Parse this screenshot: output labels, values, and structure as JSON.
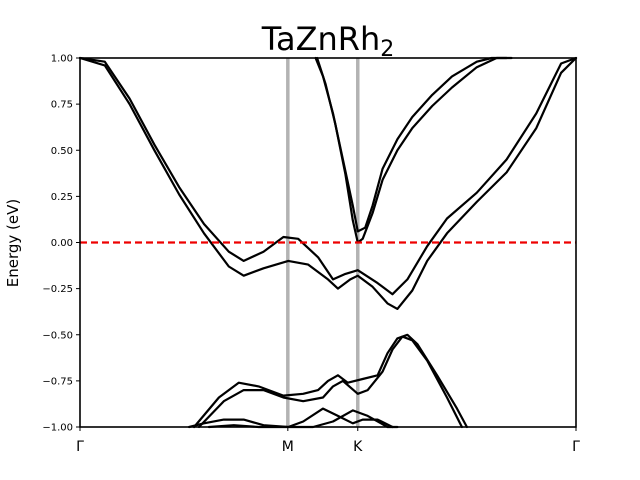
{
  "chart_data": {
    "type": "line",
    "title_main": "TaZnRh",
    "title_sub": "2",
    "ylabel": "Energy (eV)",
    "xlabel": "",
    "ylim": [
      -1.0,
      1.0
    ],
    "xlim": [
      0,
      1
    ],
    "yticks": [
      {
        "value": 1.0,
        "label": "1.00"
      },
      {
        "value": 0.75,
        "label": "0.75"
      },
      {
        "value": 0.5,
        "label": "0.50"
      },
      {
        "value": 0.25,
        "label": "0.25"
      },
      {
        "value": 0.0,
        "label": "0.00"
      },
      {
        "value": -0.25,
        "label": "−0.25"
      },
      {
        "value": -0.5,
        "label": "−0.50"
      },
      {
        "value": -0.75,
        "label": "−0.75"
      },
      {
        "value": -1.0,
        "label": "−1.00"
      }
    ],
    "kpoints": [
      {
        "label": "Γ",
        "x": 0.0
      },
      {
        "label": "M",
        "x": 0.419
      },
      {
        "label": "K",
        "x": 0.56
      },
      {
        "label": "Γ",
        "x": 1.0
      }
    ],
    "fermi_level": 0.0,
    "grid": false,
    "colors": {
      "bands": "#000000",
      "fermi": "#ee0000",
      "kline": "#b3b3b3"
    },
    "series": [
      {
        "values": [
          [
            0.0,
            1.04
          ],
          [
            0.05,
            0.98
          ],
          [
            0.1,
            0.78
          ],
          [
            0.15,
            0.53
          ],
          [
            0.2,
            0.3
          ],
          [
            0.25,
            0.1
          ],
          [
            0.3,
            -0.05
          ],
          [
            0.33,
            -0.1
          ],
          [
            0.37,
            -0.05
          ],
          [
            0.41,
            0.03
          ],
          [
            0.44,
            0.02
          ],
          [
            0.48,
            -0.08
          ],
          [
            0.51,
            -0.2
          ],
          [
            0.535,
            -0.17
          ],
          [
            0.56,
            -0.15
          ],
          [
            0.6,
            -0.22
          ],
          [
            0.63,
            -0.28
          ],
          [
            0.66,
            -0.2
          ],
          [
            0.7,
            -0.02
          ],
          [
            0.74,
            0.13
          ],
          [
            0.8,
            0.27
          ],
          [
            0.86,
            0.45
          ],
          [
            0.92,
            0.7
          ],
          [
            0.97,
            0.97
          ],
          [
            1.0,
            1.04
          ]
        ]
      },
      {
        "values": [
          [
            0.0,
            1.04
          ],
          [
            0.05,
            0.96
          ],
          [
            0.1,
            0.75
          ],
          [
            0.15,
            0.5
          ],
          [
            0.2,
            0.26
          ],
          [
            0.25,
            0.05
          ],
          [
            0.3,
            -0.13
          ],
          [
            0.33,
            -0.18
          ],
          [
            0.37,
            -0.14
          ],
          [
            0.42,
            -0.1
          ],
          [
            0.46,
            -0.12
          ],
          [
            0.5,
            -0.2
          ],
          [
            0.52,
            -0.25
          ],
          [
            0.545,
            -0.2
          ],
          [
            0.56,
            -0.18
          ],
          [
            0.59,
            -0.24
          ],
          [
            0.62,
            -0.33
          ],
          [
            0.64,
            -0.36
          ],
          [
            0.67,
            -0.26
          ],
          [
            0.7,
            -0.1
          ],
          [
            0.74,
            0.05
          ],
          [
            0.8,
            0.22
          ],
          [
            0.86,
            0.38
          ],
          [
            0.92,
            0.62
          ],
          [
            0.97,
            0.92
          ],
          [
            1.0,
            1.04
          ]
        ]
      },
      {
        "values": [
          [
            0.475,
            1.04
          ],
          [
            0.49,
            0.9
          ],
          [
            0.51,
            0.7
          ],
          [
            0.53,
            0.45
          ],
          [
            0.55,
            0.2
          ],
          [
            0.56,
            0.06
          ],
          [
            0.575,
            0.08
          ],
          [
            0.59,
            0.2
          ],
          [
            0.61,
            0.4
          ],
          [
            0.64,
            0.56
          ],
          [
            0.67,
            0.68
          ],
          [
            0.71,
            0.8
          ],
          [
            0.75,
            0.9
          ],
          [
            0.8,
            0.98
          ],
          [
            0.83,
            1.0
          ],
          [
            0.86,
            1.04
          ]
        ]
      },
      {
        "values": [
          [
            0.478,
            1.04
          ],
          [
            0.495,
            0.86
          ],
          [
            0.515,
            0.64
          ],
          [
            0.535,
            0.37
          ],
          [
            0.55,
            0.12
          ],
          [
            0.56,
            0.0
          ],
          [
            0.57,
            0.02
          ],
          [
            0.59,
            0.16
          ],
          [
            0.61,
            0.34
          ],
          [
            0.64,
            0.5
          ],
          [
            0.67,
            0.62
          ],
          [
            0.71,
            0.74
          ],
          [
            0.75,
            0.84
          ],
          [
            0.8,
            0.95
          ],
          [
            0.84,
            1.0
          ],
          [
            0.87,
            1.04
          ]
        ]
      },
      {
        "values": [
          [
            0.23,
            -1.05
          ],
          [
            0.28,
            -0.84
          ],
          [
            0.32,
            -0.76
          ],
          [
            0.36,
            -0.78
          ],
          [
            0.41,
            -0.83
          ],
          [
            0.45,
            -0.82
          ],
          [
            0.48,
            -0.8
          ],
          [
            0.5,
            -0.75
          ],
          [
            0.52,
            -0.72
          ],
          [
            0.54,
            -0.76
          ],
          [
            0.57,
            -0.74
          ],
          [
            0.6,
            -0.72
          ],
          [
            0.62,
            -0.6
          ],
          [
            0.64,
            -0.52
          ],
          [
            0.66,
            -0.5
          ],
          [
            0.68,
            -0.55
          ],
          [
            0.72,
            -0.72
          ],
          [
            0.76,
            -0.9
          ],
          [
            0.78,
            -1.05
          ]
        ]
      },
      {
        "values": [
          [
            0.24,
            -1.05
          ],
          [
            0.29,
            -0.86
          ],
          [
            0.33,
            -0.8
          ],
          [
            0.37,
            -0.8
          ],
          [
            0.41,
            -0.84
          ],
          [
            0.45,
            -0.86
          ],
          [
            0.49,
            -0.84
          ],
          [
            0.51,
            -0.78
          ],
          [
            0.53,
            -0.75
          ],
          [
            0.56,
            -0.82
          ],
          [
            0.58,
            -0.8
          ],
          [
            0.61,
            -0.7
          ],
          [
            0.63,
            -0.58
          ],
          [
            0.65,
            -0.51
          ],
          [
            0.67,
            -0.53
          ],
          [
            0.7,
            -0.64
          ],
          [
            0.74,
            -0.84
          ],
          [
            0.77,
            -1.05
          ]
        ]
      },
      {
        "values": [
          [
            0.22,
            -1.05
          ],
          [
            0.25,
            -0.98
          ],
          [
            0.29,
            -0.96
          ],
          [
            0.33,
            -0.96
          ],
          [
            0.37,
            -0.99
          ],
          [
            0.42,
            -1.0
          ],
          [
            0.45,
            -0.97
          ],
          [
            0.49,
            -0.9
          ],
          [
            0.52,
            -0.94
          ],
          [
            0.55,
            -0.98
          ],
          [
            0.57,
            -0.96
          ],
          [
            0.6,
            -0.96
          ],
          [
            0.63,
            -1.05
          ]
        ]
      },
      {
        "values": [
          [
            0.26,
            -1.05
          ],
          [
            0.31,
            -0.99
          ],
          [
            0.36,
            -1.0
          ],
          [
            0.42,
            -1.02
          ],
          [
            0.47,
            -1.0
          ],
          [
            0.51,
            -0.97
          ],
          [
            0.55,
            -0.91
          ],
          [
            0.58,
            -0.94
          ],
          [
            0.62,
            -1.0
          ],
          [
            0.64,
            -1.05
          ]
        ]
      }
    ]
  }
}
